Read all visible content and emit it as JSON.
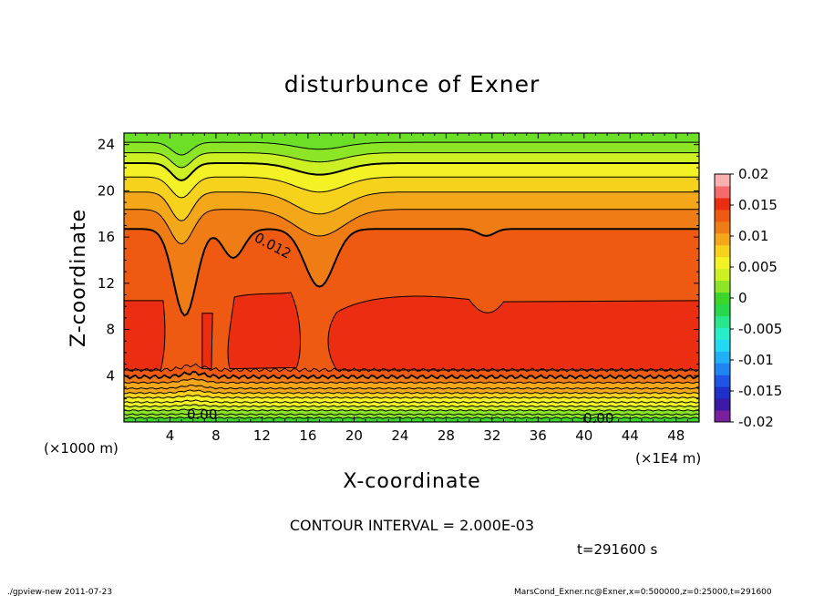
{
  "chart_data": {
    "type": "heatmap",
    "title": "disturbunce of Exner",
    "xlabel": "X-coordinate",
    "ylabel": "Z-coordinate",
    "x_unit_label": "(×1E4 m)",
    "y_unit_label": "(×1000 m)",
    "xlim": [
      0,
      50
    ],
    "ylim": [
      0,
      25
    ],
    "x_ticks": [
      4,
      8,
      12,
      16,
      20,
      24,
      28,
      32,
      36,
      40,
      44,
      48
    ],
    "y_ticks": [
      4,
      8,
      12,
      16,
      20,
      24
    ],
    "colorbar": {
      "ticks": [
        "0.02",
        "0.015",
        "0.01",
        "0.005",
        "0",
        "-0.005",
        "-0.01",
        "-0.015",
        "-0.02"
      ],
      "levels": [
        -0.02,
        -0.018,
        -0.016,
        -0.014,
        -0.012,
        -0.01,
        -0.008,
        -0.006,
        -0.004,
        -0.002,
        0,
        0.002,
        0.004,
        0.006,
        0.008,
        0.01,
        0.012,
        0.014,
        0.016,
        0.018,
        0.02
      ],
      "colors": [
        "#7a1f9e",
        "#3a1aa6",
        "#1f2fc9",
        "#1f55e6",
        "#1f85f2",
        "#1fb0f5",
        "#22d8f2",
        "#27edc9",
        "#27e68c",
        "#26d84a",
        "#3cd62a",
        "#8ce626",
        "#cdf024",
        "#f2f224",
        "#f7d21c",
        "#f5a71a",
        "#f07c16",
        "#ee5a12",
        "#eb2d12",
        "#f56a6a",
        "#f9b0b0"
      ]
    },
    "contour_labels": [
      "0.012",
      "0.00",
      "0.00"
    ],
    "contour_interval_text": "CONTOUR INTERVAL = 2.000E-03",
    "time_text": "t=291600 s"
  },
  "footer": {
    "left": "./gpview-new   2011-07-23",
    "right": "MarsCond_Exner.nc@Exner,x=0:500000,z=0:25000,t=291600"
  }
}
